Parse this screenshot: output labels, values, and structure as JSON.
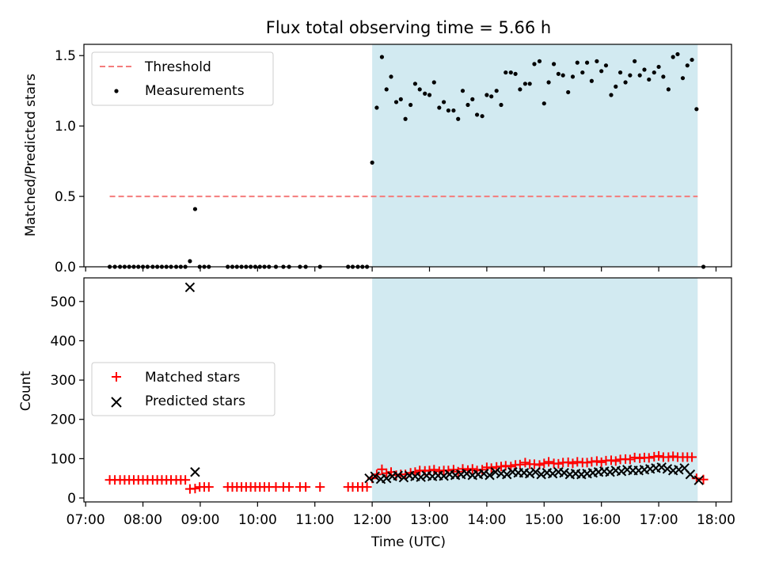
{
  "title": "Flux total observing time = 5.66 h",
  "colors": {
    "threshold": "#f47c7c",
    "measurement": "#000000",
    "matched": "#ff0000",
    "predicted": "#000000",
    "span": "#add8e6"
  },
  "chart_data": [
    {
      "type": "scatter",
      "ylabel": "Matched/Predicted stars",
      "ylim": [
        0,
        1.58
      ],
      "xlim": [
        6.97,
        18.27
      ],
      "yticks": [
        0.0,
        0.5,
        1.0,
        1.5
      ],
      "ytick_labels": [
        "0.0",
        "0.5",
        "1.0",
        "1.5"
      ],
      "legend": {
        "placement": "upper-left",
        "entries": [
          {
            "label": "Threshold",
            "marker": "dashed-line"
          },
          {
            "label": "Measurements",
            "marker": "dot"
          }
        ]
      },
      "shaded_span": [
        12.0,
        17.68
      ],
      "threshold": {
        "y": 0.5,
        "x_range": [
          7.42,
          17.68
        ]
      },
      "series": [
        {
          "type": "scatter",
          "x": [
            7.42,
            7.51,
            7.6,
            7.68,
            7.76,
            7.84,
            7.92,
            8.0,
            8.08,
            8.17,
            8.25,
            8.33,
            8.41,
            8.49,
            8.58,
            8.66,
            8.74,
            8.82,
            8.91,
            8.99,
            9.07,
            9.15,
            9.48,
            9.56,
            9.64,
            9.72,
            9.8,
            9.88,
            9.96,
            10.04,
            10.12,
            10.2,
            10.32,
            10.45,
            10.55,
            10.74,
            10.84,
            11.09,
            11.58,
            11.66,
            11.75,
            11.83,
            11.91,
            12.0,
            12.08,
            12.17,
            12.25,
            12.33,
            12.42,
            12.5,
            12.58,
            12.67,
            12.75,
            12.83,
            12.92,
            13.0,
            13.08,
            13.17,
            13.25,
            13.33,
            13.42,
            13.5,
            13.58,
            13.67,
            13.75,
            13.83,
            13.92,
            14.0,
            14.08,
            14.17,
            14.25,
            14.33,
            14.42,
            14.5,
            14.58,
            14.67,
            14.75,
            14.83,
            14.92,
            15.0,
            15.08,
            15.17,
            15.25,
            15.33,
            15.42,
            15.5,
            15.58,
            15.67,
            15.75,
            15.83,
            15.92,
            16.0,
            16.08,
            16.17,
            16.25,
            16.33,
            16.42,
            16.5,
            16.58,
            16.67,
            16.75,
            16.83,
            16.92,
            17.0,
            17.08,
            17.17,
            17.25,
            17.33,
            17.42,
            17.5,
            17.58,
            17.66,
            17.78
          ],
          "y": [
            0,
            0,
            0,
            0,
            0,
            0,
            0,
            0,
            0,
            0,
            0,
            0,
            0,
            0,
            0,
            0,
            0,
            0.04,
            0.41,
            0,
            0,
            0,
            0,
            0,
            0,
            0,
            0,
            0,
            0,
            0,
            0,
            0,
            0,
            0,
            0,
            0,
            0,
            0,
            0,
            0,
            0,
            0,
            0,
            0.74,
            1.13,
            1.49,
            1.26,
            1.35,
            1.17,
            1.19,
            1.05,
            1.15,
            1.3,
            1.26,
            1.23,
            1.22,
            1.31,
            1.13,
            1.17,
            1.11,
            1.11,
            1.05,
            1.25,
            1.15,
            1.19,
            1.08,
            1.07,
            1.22,
            1.21,
            1.25,
            1.15,
            1.38,
            1.38,
            1.37,
            1.26,
            1.3,
            1.3,
            1.44,
            1.46,
            1.16,
            1.31,
            1.44,
            1.37,
            1.36,
            1.24,
            1.35,
            1.45,
            1.38,
            1.45,
            1.32,
            1.46,
            1.39,
            1.43,
            1.22,
            1.28,
            1.38,
            1.31,
            1.36,
            1.46,
            1.36,
            1.4,
            1.33,
            1.38,
            1.42,
            1.35,
            1.26,
            1.49,
            1.51,
            1.34,
            1.43,
            1.47,
            1.12,
            0
          ]
        }
      ]
    },
    {
      "type": "scatter",
      "ylabel": "Count",
      "xlabel": "Time (UTC)",
      "ylim": [
        -10,
        560
      ],
      "xlim": [
        6.97,
        18.27
      ],
      "yticks": [
        0,
        100,
        200,
        300,
        400,
        500
      ],
      "ytick_labels": [
        "0",
        "100",
        "200",
        "300",
        "400",
        "500"
      ],
      "xticks": [
        7,
        8,
        9,
        10,
        11,
        12,
        13,
        14,
        15,
        16,
        17,
        18
      ],
      "xtick_labels": [
        "07:00",
        "08:00",
        "09:00",
        "10:00",
        "11:00",
        "12:00",
        "13:00",
        "14:00",
        "15:00",
        "16:00",
        "17:00",
        "18:00"
      ],
      "legend": {
        "placement": "center-left",
        "entries": [
          {
            "label": "Matched stars",
            "marker": "plus"
          },
          {
            "label": "Predicted stars",
            "marker": "x"
          }
        ]
      },
      "shaded_span": [
        12.0,
        17.68
      ],
      "series": [
        {
          "name": "Matched stars",
          "marker": "plus",
          "x": [
            7.42,
            7.51,
            7.6,
            7.68,
            7.76,
            7.84,
            7.92,
            8.0,
            8.08,
            8.17,
            8.25,
            8.33,
            8.41,
            8.49,
            8.58,
            8.66,
            8.74,
            8.82,
            8.91,
            8.99,
            9.07,
            9.15,
            9.48,
            9.56,
            9.64,
            9.72,
            9.8,
            9.88,
            9.96,
            10.04,
            10.12,
            10.2,
            10.32,
            10.45,
            10.55,
            10.74,
            10.84,
            11.09,
            11.58,
            11.66,
            11.75,
            11.83,
            11.91,
            12.0,
            12.08,
            12.17,
            12.25,
            12.33,
            12.42,
            12.5,
            12.58,
            12.67,
            12.75,
            12.83,
            12.92,
            13.0,
            13.08,
            13.17,
            13.25,
            13.33,
            13.42,
            13.5,
            13.58,
            13.67,
            13.75,
            13.83,
            13.92,
            14.0,
            14.08,
            14.17,
            14.25,
            14.33,
            14.42,
            14.5,
            14.58,
            14.67,
            14.75,
            14.83,
            14.92,
            15.0,
            15.08,
            15.17,
            15.25,
            15.33,
            15.42,
            15.5,
            15.58,
            15.67,
            15.75,
            15.83,
            15.92,
            16.0,
            16.08,
            16.17,
            16.25,
            16.33,
            16.42,
            16.5,
            16.58,
            16.67,
            16.75,
            16.83,
            16.92,
            17.0,
            17.08,
            17.17,
            17.25,
            17.33,
            17.42,
            17.5,
            17.58,
            17.66,
            17.78
          ],
          "y": [
            46,
            46,
            46,
            46,
            46,
            46,
            46,
            46,
            46,
            46,
            46,
            46,
            46,
            46,
            46,
            46,
            46,
            23,
            24,
            28,
            28,
            28,
            28,
            28,
            28,
            28,
            28,
            28,
            28,
            28,
            28,
            28,
            28,
            28,
            28,
            28,
            28,
            28,
            28,
            28,
            28,
            28,
            28,
            50,
            60,
            73,
            63,
            66,
            58,
            60,
            60,
            64,
            66,
            70,
            69,
            70,
            72,
            68,
            70,
            70,
            72,
            67,
            74,
            71,
            74,
            70,
            72,
            78,
            76,
            79,
            80,
            82,
            80,
            84,
            85,
            90,
            86,
            86,
            84,
            88,
            92,
            88,
            87,
            90,
            91,
            88,
            92,
            90,
            90,
            92,
            94,
            91,
            95,
            96,
            94,
            98,
            99,
            98,
            103,
            101,
            103,
            102,
            105,
            107,
            104,
            104,
            106,
            104,
            104,
            104,
            104,
            50,
            47
          ]
        },
        {
          "name": "Predicted stars",
          "marker": "x",
          "x": [
            8.82,
            8.91,
            11.95,
            12.05,
            12.15,
            12.25,
            12.35,
            12.45,
            12.55,
            12.65,
            12.75,
            12.85,
            12.95,
            13.05,
            13.15,
            13.25,
            13.35,
            13.45,
            13.55,
            13.65,
            13.75,
            13.85,
            13.95,
            14.05,
            14.15,
            14.25,
            14.35,
            14.45,
            14.55,
            14.65,
            14.75,
            14.85,
            14.95,
            15.05,
            15.15,
            15.25,
            15.35,
            15.45,
            15.55,
            15.65,
            15.75,
            15.85,
            15.95,
            16.05,
            16.15,
            16.25,
            16.35,
            16.45,
            16.55,
            16.65,
            16.75,
            16.85,
            16.95,
            17.05,
            17.15,
            17.25,
            17.35,
            17.45,
            17.55,
            17.7
          ],
          "y": [
            536,
            66,
            50,
            55,
            48,
            50,
            55,
            57,
            52,
            57,
            55,
            53,
            57,
            55,
            57,
            56,
            60,
            58,
            60,
            62,
            58,
            60,
            62,
            58,
            66,
            62,
            60,
            66,
            64,
            64,
            62,
            66,
            60,
            64,
            62,
            66,
            64,
            60,
            62,
            60,
            62,
            64,
            66,
            68,
            66,
            70,
            68,
            72,
            70,
            70,
            72,
            74,
            76,
            78,
            74,
            70,
            72,
            76,
            60,
            45
          ]
        }
      ]
    }
  ]
}
